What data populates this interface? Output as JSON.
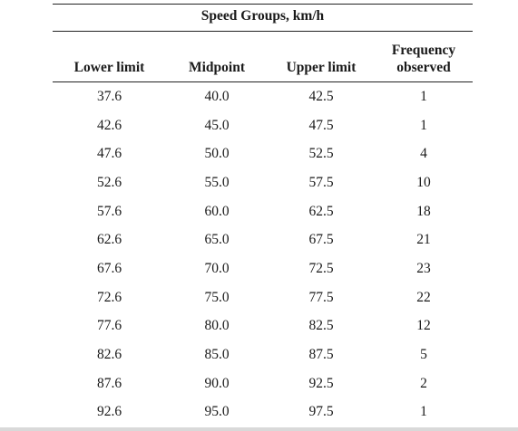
{
  "table": {
    "group_title": "Speed Groups, km/h",
    "columns": [
      "Lower limit",
      "Midpoint",
      "Upper limit",
      "Frequency observed"
    ],
    "rows": [
      [
        "37.6",
        "40.0",
        "42.5",
        "1"
      ],
      [
        "42.6",
        "45.0",
        "47.5",
        "1"
      ],
      [
        "47.6",
        "50.0",
        "52.5",
        "4"
      ],
      [
        "52.6",
        "55.0",
        "57.5",
        "10"
      ],
      [
        "57.6",
        "60.0",
        "62.5",
        "18"
      ],
      [
        "62.6",
        "65.0",
        "67.5",
        "21"
      ],
      [
        "67.6",
        "70.0",
        "72.5",
        "23"
      ],
      [
        "72.6",
        "75.0",
        "77.5",
        "22"
      ],
      [
        "77.6",
        "80.0",
        "82.5",
        "12"
      ],
      [
        "82.6",
        "85.0",
        "87.5",
        "5"
      ],
      [
        "87.6",
        "90.0",
        "92.5",
        "2"
      ],
      [
        "92.6",
        "95.0",
        "97.5",
        "1"
      ]
    ]
  }
}
